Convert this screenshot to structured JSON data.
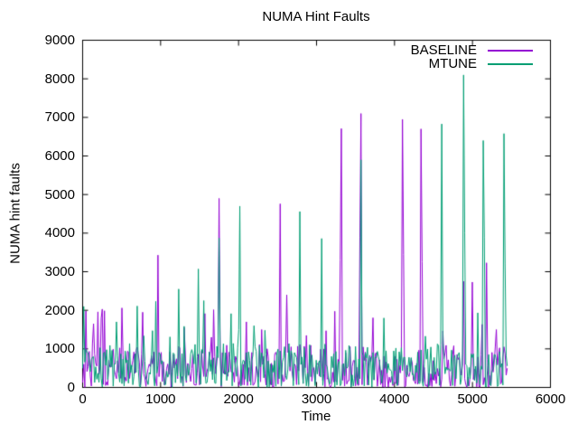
{
  "title": "NUMA Hint Faults",
  "legend": {
    "position": "top-right-inside",
    "entries": [
      {
        "label": "BASELINE",
        "color": "#9400D3"
      },
      {
        "label": "MTUNE",
        "color": "#009E73"
      }
    ]
  },
  "colors": {
    "background": "#ffffff",
    "axis": "#000000",
    "text": "#000000",
    "baseline_series": "#9400D3",
    "mtune_series": "#009E73"
  },
  "chart_data": {
    "type": "line",
    "title": "NUMA Hint Faults",
    "xlabel": "Time",
    "ylabel": "NUMA hint faults",
    "xlim": [
      0,
      6000
    ],
    "ylim": [
      0,
      9000
    ],
    "xticks": [
      0,
      1000,
      2000,
      3000,
      4000,
      5000,
      6000
    ],
    "yticks": [
      0,
      1000,
      2000,
      3000,
      4000,
      5000,
      6000,
      7000,
      8000,
      9000
    ],
    "grid": false,
    "tick_style": "inward-mirrored",
    "legend_position": "top-right-inside",
    "series": [
      {
        "name": "BASELINE",
        "color": "#9400D3",
        "style": "noisy line, band 0-1100 with sharp isolated spikes",
        "t_start": 0,
        "t_end": 5450,
        "t_step": 14,
        "noise_band": [
          0,
          1100
        ],
        "noise_seed": 1234,
        "spikes": [
          [
            35,
            1980
          ],
          [
            250,
            2030
          ],
          [
            510,
            2060
          ],
          [
            770,
            1950
          ],
          [
            965,
            3430
          ],
          [
            1300,
            1550
          ],
          [
            1745,
            4900
          ],
          [
            2100,
            1700
          ],
          [
            2290,
            1500
          ],
          [
            2535,
            4760
          ],
          [
            2620,
            2400
          ],
          [
            3300,
            3300
          ],
          [
            3315,
            6710
          ],
          [
            3560,
            3900
          ],
          [
            3575,
            7100
          ],
          [
            4108,
            6950
          ],
          [
            4122,
            3450
          ],
          [
            4342,
            6700
          ],
          [
            4356,
            3260
          ],
          [
            4890,
            2750
          ],
          [
            5000,
            2730
          ],
          [
            5180,
            3230
          ],
          [
            5300,
            1500
          ]
        ]
      },
      {
        "name": "MTUNE",
        "color": "#009E73",
        "style": "noisy line, band 0-1100 with sharp isolated spikes",
        "t_start": 0,
        "t_end": 5450,
        "t_step": 14,
        "noise_band": [
          0,
          1100
        ],
        "noise_seed": 5678,
        "spikes": [
          [
            15,
            2100
          ],
          [
            430,
            1700
          ],
          [
            700,
            2110
          ],
          [
            940,
            2230
          ],
          [
            1230,
            2550
          ],
          [
            1490,
            3070
          ],
          [
            1560,
            2250
          ],
          [
            1745,
            3870
          ],
          [
            2010,
            4700
          ],
          [
            2200,
            1600
          ],
          [
            2785,
            4560
          ],
          [
            3060,
            3860
          ],
          [
            3570,
            5900
          ],
          [
            3860,
            1800
          ],
          [
            4600,
            6830
          ],
          [
            4890,
            8100
          ],
          [
            4905,
            4000
          ],
          [
            5140,
            6400
          ],
          [
            5155,
            3900
          ],
          [
            5397,
            6580
          ],
          [
            5420,
            3200
          ]
        ]
      }
    ]
  }
}
